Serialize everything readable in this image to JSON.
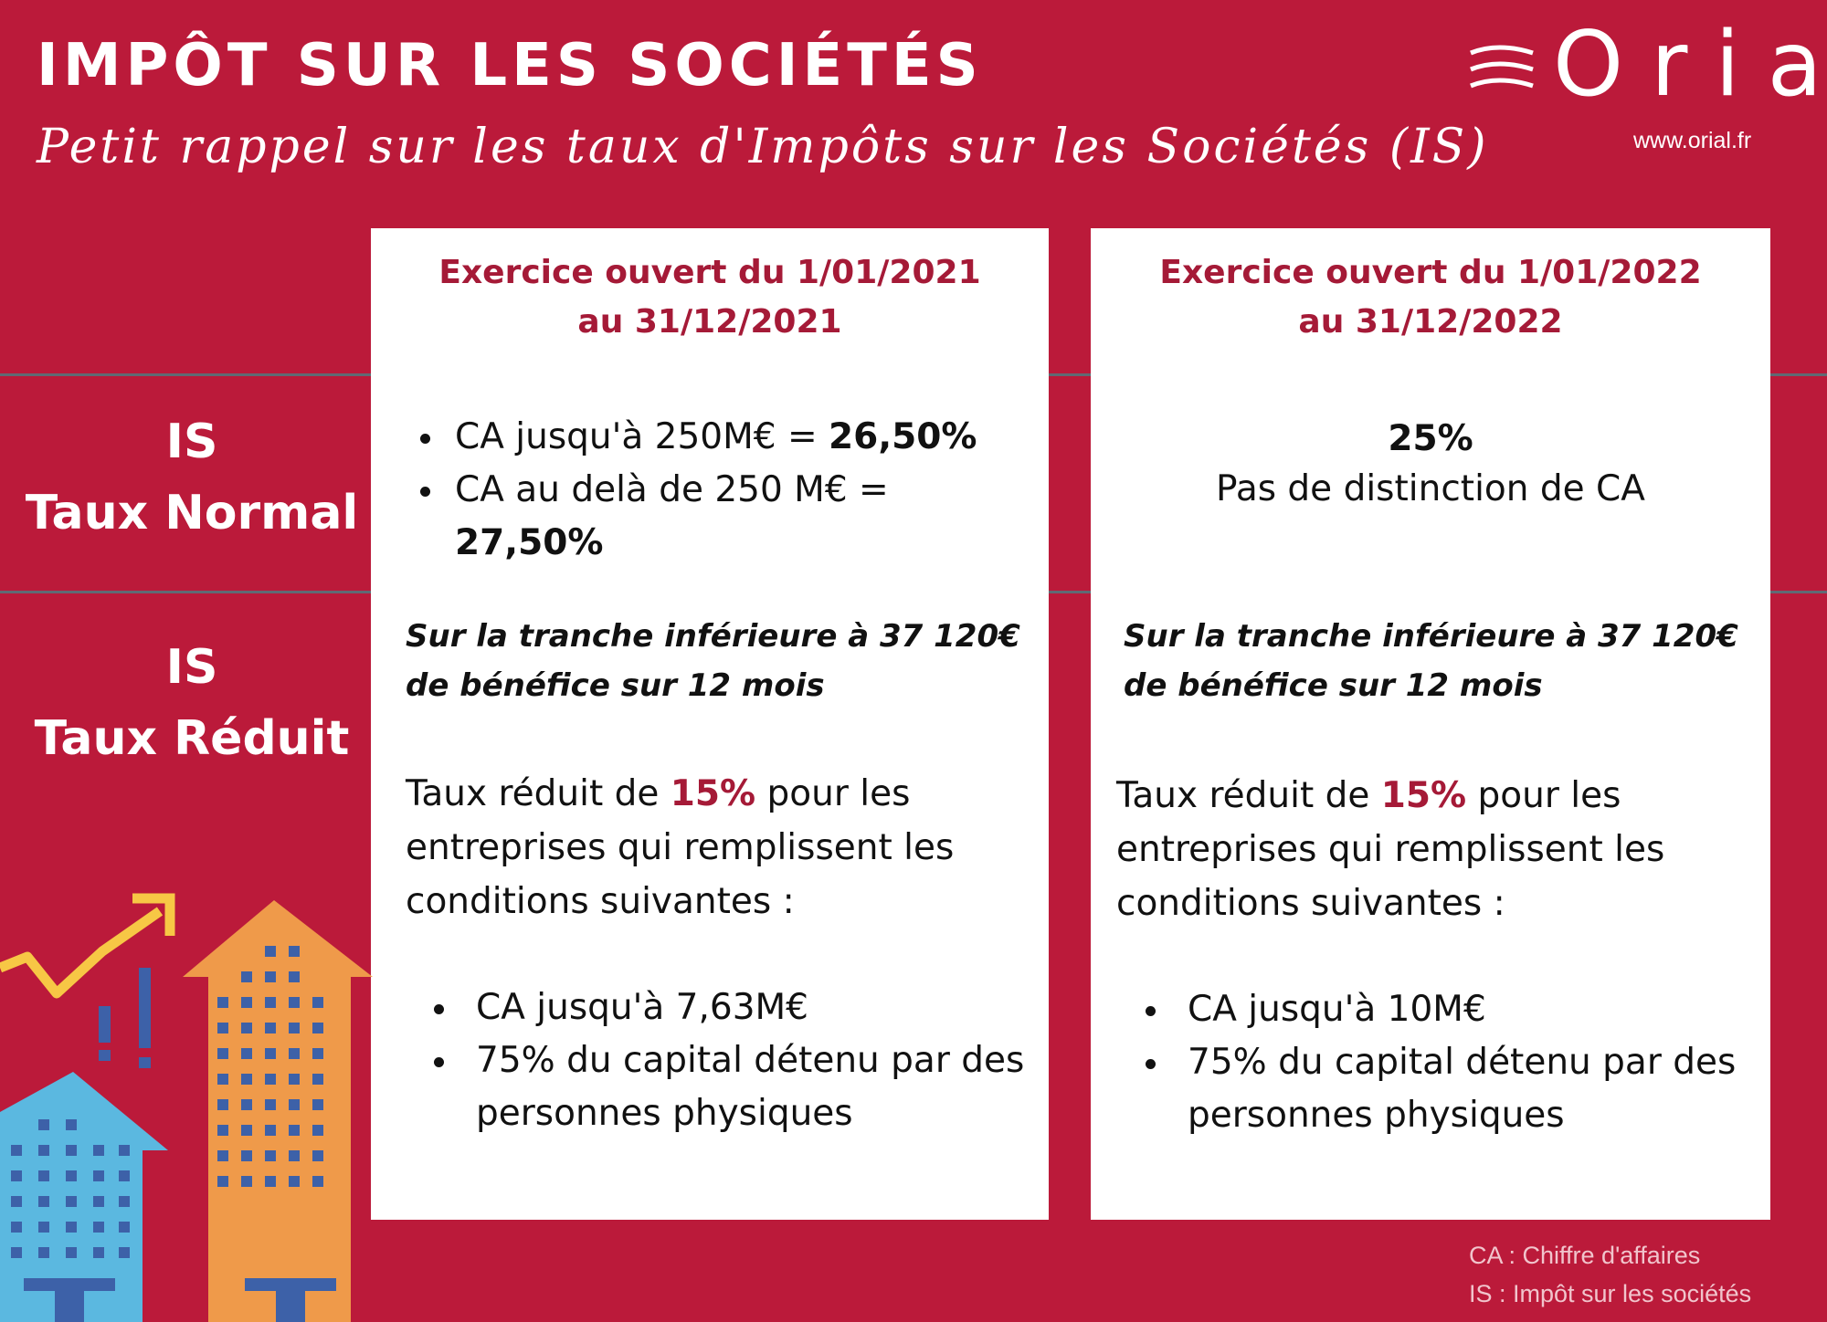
{
  "header": {
    "title": "IMPÔT SUR LES SOCIÉTÉS",
    "subtitle": "Petit rappel sur les taux d'Impôts sur les Sociétés (IS)"
  },
  "logo": {
    "text": "Orial",
    "url": "www.orial.fr"
  },
  "rows": {
    "normal": {
      "line1": "IS",
      "line2": "Taux Normal"
    },
    "reduit": {
      "line1": "IS",
      "line2": "Taux Réduit"
    }
  },
  "columns": [
    {
      "header_line1": "Exercice ouvert du 1/01/2021",
      "header_line2": "au 31/12/2021",
      "normal": {
        "items": [
          {
            "text": "CA jusqu'à 250M€ = ",
            "value": "26,50%"
          },
          {
            "text": "CA au delà de 250 M€ = ",
            "value": "27,50%"
          }
        ]
      },
      "reduit": {
        "tranche_line1": "Sur la tranche inférieure à 37 120€",
        "tranche_line2": "de bénéfice sur 12 mois",
        "intro_before": "Taux réduit de ",
        "intro_rate": "15%",
        "intro_after": " pour les",
        "intro_line2": "entreprises qui remplissent les",
        "intro_line3": "conditions suivantes :",
        "conditions": [
          "CA jusqu'à 7,63M€",
          "75% du capital détenu par des personnes physiques"
        ]
      }
    },
    {
      "header_line1": "Exercice ouvert du 1/01/2022",
      "header_line2": "au 31/12/2022",
      "normal": {
        "rate": "25%",
        "description": "Pas de distinction de CA"
      },
      "reduit": {
        "tranche_line1": "Sur la tranche inférieure à 37 120€",
        "tranche_line2": "de bénéfice sur 12 mois",
        "intro_before": "Taux réduit de ",
        "intro_rate": "15%",
        "intro_after": " pour les",
        "intro_line2": "entreprises qui remplissent les",
        "intro_line3": "conditions suivantes :",
        "conditions": [
          "CA jusqu'à 10M€",
          "75% du capital détenu par des personnes physiques"
        ]
      }
    }
  ],
  "footnotes": {
    "ca": "CA : Chiffre d'affaires",
    "is": "IS : Impôt sur les sociétés"
  },
  "colors": {
    "background": "#bb1a3a",
    "accent_text": "#a51a37",
    "separator": "#606a74",
    "building_blue": "#5bb8e0",
    "building_orange": "#ef9a4a",
    "window_blue": "#3d61a8",
    "arrow_yellow": "#f7c745"
  },
  "icons": {
    "illustration": "growth-buildings-illustration",
    "logo": "orial-logo"
  }
}
